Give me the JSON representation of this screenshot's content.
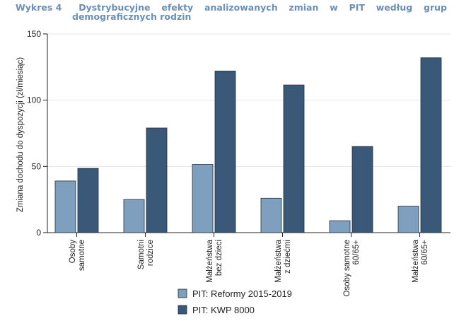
{
  "chart_data": {
    "type": "bar",
    "figure_label": "Wykres 4",
    "title": "Dystrybucyjne efekty analizowanych zmian w PIT według grup demograficznych rodzin",
    "ylabel": "Zmiana dochodu do dyspozycji (zł/miesiąc)",
    "xlabel": "",
    "ylim": [
      0,
      150
    ],
    "yticks": [
      0,
      50,
      100,
      150
    ],
    "grid": true,
    "legend_position": "bottom",
    "categories": [
      [
        "Osoby",
        "samotne"
      ],
      [
        "Samotni",
        "rodzice"
      ],
      [
        "Małżeństwa",
        "bez dzieci"
      ],
      [
        "Małżeństwa",
        "z dziećmi"
      ],
      [
        "Osoby samotne",
        "60/65+"
      ],
      [
        "Małżeństwa",
        "60/65+"
      ]
    ],
    "series": [
      {
        "name": "PIT: Reformy 2015-2019",
        "color": "#7f9fbf",
        "values": [
          39,
          25,
          51.5,
          26,
          9,
          20
        ]
      },
      {
        "name": "PIT: KWP 8000",
        "color": "#3a5878",
        "values": [
          48.5,
          79,
          122,
          111.5,
          65,
          132
        ]
      }
    ]
  }
}
